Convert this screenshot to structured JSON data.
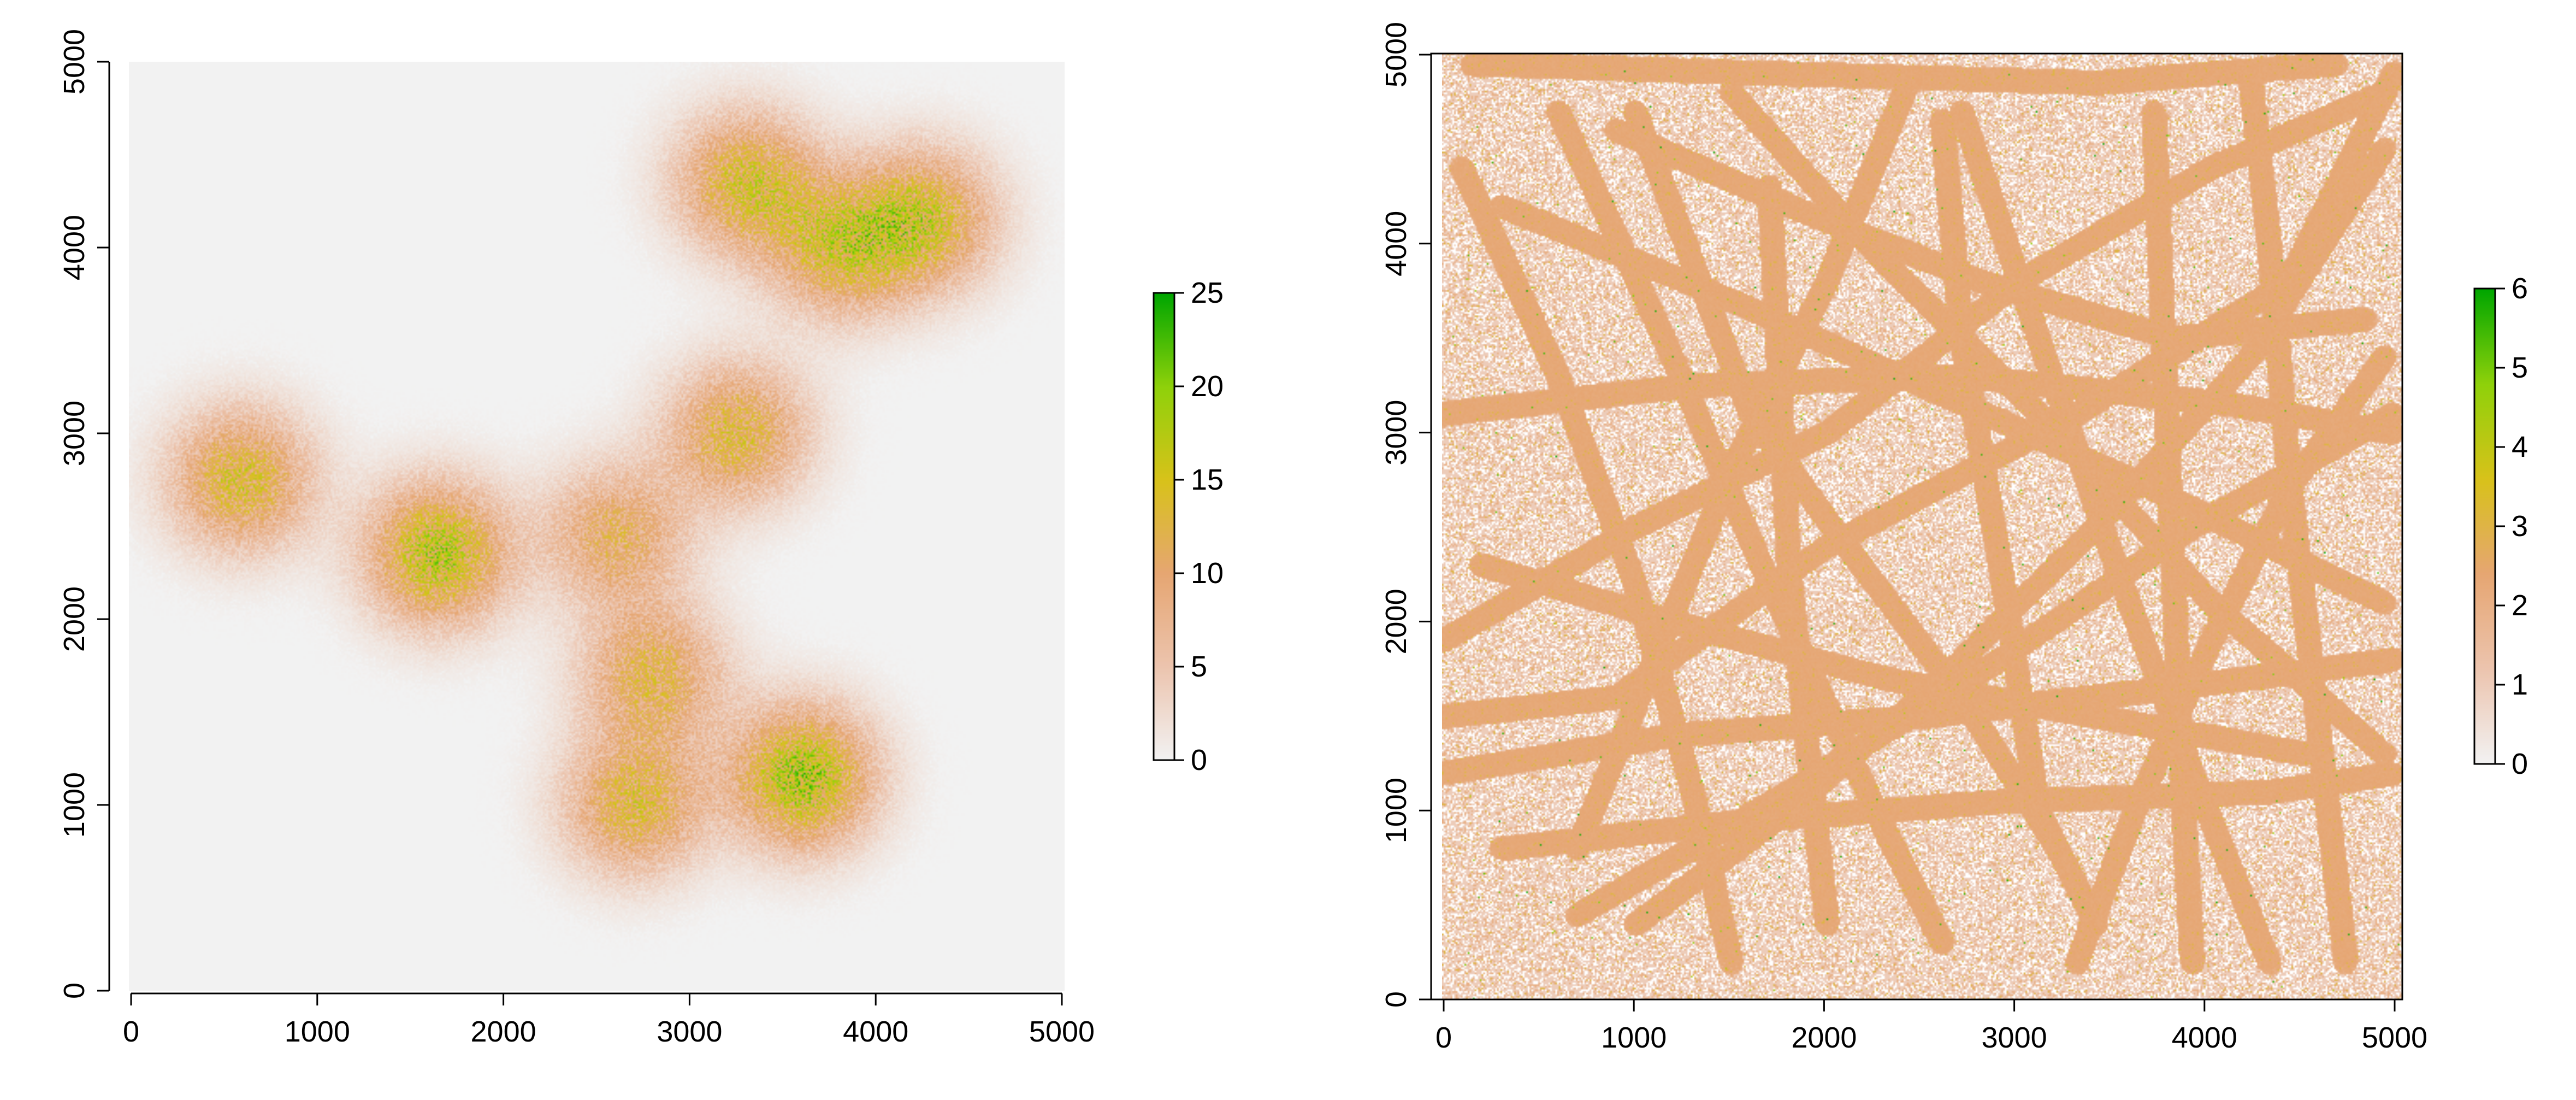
{
  "chart_data": [
    {
      "type": "heatmap",
      "title": "",
      "xlabel": "",
      "ylabel": "",
      "xlim": [
        -100,
        5100
      ],
      "ylim": [
        -100,
        5100
      ],
      "raster_extent": [
        0,
        5000
      ],
      "x_ticks": [
        0,
        1000,
        2000,
        3000,
        4000,
        5000
      ],
      "y_ticks": [
        0,
        1000,
        2000,
        3000,
        4000,
        5000
      ],
      "x_tick_labels": [
        "0",
        "1000",
        "2000",
        "3000",
        "4000",
        "5000"
      ],
      "y_tick_labels": [
        "0",
        "1000",
        "2000",
        "3000",
        "4000",
        "5000"
      ],
      "box": false,
      "background_value": 0,
      "color_scale": {
        "min": 0,
        "max": 25,
        "ticks": [
          0,
          5,
          10,
          15,
          20,
          25
        ],
        "tick_labels": [
          "0",
          "5",
          "10",
          "15",
          "20",
          "25"
        ],
        "colors": [
          "#f2f2f2",
          "#ecc4ae",
          "#e6a672",
          "#d8c21a",
          "#8fd10a",
          "#00a600"
        ]
      },
      "clusters": [
        {
          "x": 600,
          "y": 2750,
          "peak": 13
        },
        {
          "x": 1650,
          "y": 2350,
          "peak": 16
        },
        {
          "x": 2600,
          "y": 2450,
          "peak": 10
        },
        {
          "x": 2800,
          "y": 1700,
          "peak": 11
        },
        {
          "x": 2700,
          "y": 1000,
          "peak": 12
        },
        {
          "x": 3600,
          "y": 1150,
          "peak": 17
        },
        {
          "x": 3250,
          "y": 3000,
          "peak": 12
        },
        {
          "x": 3300,
          "y": 4350,
          "peak": 13
        },
        {
          "x": 3800,
          "y": 4000,
          "peak": 12
        },
        {
          "x": 4250,
          "y": 4150,
          "peak": 13
        }
      ]
    },
    {
      "type": "heatmap",
      "title": "",
      "xlabel": "",
      "ylabel": "",
      "xlim": [
        -100,
        5100
      ],
      "ylim": [
        -100,
        5100
      ],
      "raster_extent": [
        0,
        5000
      ],
      "x_ticks": [
        0,
        1000,
        2000,
        3000,
        4000,
        5000
      ],
      "y_ticks": [
        0,
        1000,
        2000,
        3000,
        4000,
        5000
      ],
      "x_tick_labels": [
        "0",
        "1000",
        "2000",
        "3000",
        "4000",
        "5000"
      ],
      "y_tick_labels": [
        "0",
        "1000",
        "2000",
        "3000",
        "4000",
        "5000"
      ],
      "box": true,
      "background_value": 0.6,
      "color_scale": {
        "min": 0,
        "max": 6,
        "ticks": [
          0,
          1,
          2,
          3,
          4,
          5,
          6
        ],
        "tick_labels": [
          "0",
          "1",
          "2",
          "3",
          "4",
          "5",
          "6"
        ],
        "colors": [
          "#f2f2f2",
          "#ecc4ae",
          "#e6a672",
          "#d8c21a",
          "#8fd10a",
          "#00a600"
        ]
      },
      "tracks": [
        [
          [
            150,
            4950
          ],
          [
            1700,
            4900
          ],
          [
            3400,
            4850
          ],
          [
            4650,
            4950
          ]
        ],
        [
          [
            4950,
            4900
          ],
          [
            4400,
            3800
          ],
          [
            3300,
            3100
          ],
          [
            2000,
            2400
          ],
          [
            900,
            1600
          ],
          [
            0,
            1500
          ]
        ],
        [
          [
            600,
            4700
          ],
          [
            1150,
            3500
          ],
          [
            1700,
            2200
          ],
          [
            2300,
            900
          ],
          [
            2600,
            300
          ]
        ],
        [
          [
            2600,
            4650
          ],
          [
            2700,
            3500
          ],
          [
            2900,
            2300
          ],
          [
            3100,
            1000
          ],
          [
            3400,
            400
          ]
        ],
        [
          [
            0,
            3100
          ],
          [
            1300,
            3250
          ],
          [
            2700,
            3300
          ],
          [
            4100,
            3150
          ],
          [
            4950,
            3000
          ]
        ],
        [
          [
            300,
            800
          ],
          [
            1600,
            950
          ],
          [
            2900,
            1050
          ],
          [
            4300,
            1100
          ],
          [
            4950,
            1200
          ]
        ],
        [
          [
            700,
            450
          ],
          [
            1800,
            1100
          ],
          [
            2900,
            1800
          ],
          [
            3900,
            2500
          ],
          [
            4950,
            3100
          ]
        ],
        [
          [
            4300,
            200
          ],
          [
            3900,
            1200
          ],
          [
            3500,
            2300
          ],
          [
            3100,
            3500
          ],
          [
            2700,
            4700
          ]
        ],
        [
          [
            100,
            4400
          ],
          [
            600,
            3300
          ],
          [
            1000,
            2200
          ],
          [
            1300,
            1100
          ],
          [
            1500,
            200
          ]
        ],
        [
          [
            1500,
            4800
          ],
          [
            2300,
            3900
          ],
          [
            3200,
            3000
          ],
          [
            4000,
            2100
          ],
          [
            4900,
            1300
          ]
        ],
        [
          [
            4900,
            4500
          ],
          [
            4200,
            3400
          ],
          [
            3400,
            2500
          ],
          [
            2600,
            1700
          ],
          [
            1800,
            1000
          ],
          [
            1000,
            400
          ]
        ],
        [
          [
            200,
            2300
          ],
          [
            1200,
            2000
          ],
          [
            2300,
            1700
          ],
          [
            3400,
            1500
          ],
          [
            4500,
            1300
          ]
        ],
        [
          [
            3700,
            4700
          ],
          [
            3750,
            3500
          ],
          [
            3800,
            2300
          ],
          [
            3850,
            1100
          ],
          [
            3900,
            200
          ]
        ],
        [
          [
            900,
            4600
          ],
          [
            1800,
            4200
          ],
          [
            2800,
            3800
          ],
          [
            3800,
            3500
          ],
          [
            4800,
            3600
          ]
        ],
        [
          [
            4700,
            200
          ],
          [
            4550,
            1500
          ],
          [
            4400,
            2800
          ],
          [
            4300,
            4000
          ],
          [
            4200,
            4900
          ]
        ],
        [
          [
            1700,
            4300
          ],
          [
            1750,
            3300
          ],
          [
            1800,
            2300
          ],
          [
            1900,
            1300
          ],
          [
            2000,
            400
          ]
        ],
        [
          [
            0,
            1900
          ],
          [
            1000,
            2500
          ],
          [
            2000,
            3000
          ],
          [
            3000,
            3800
          ],
          [
            4000,
            4400
          ],
          [
            4900,
            4800
          ]
        ],
        [
          [
            300,
            4200
          ],
          [
            1500,
            3700
          ],
          [
            2600,
            3200
          ],
          [
            3700,
            2700
          ],
          [
            4900,
            2100
          ]
        ],
        [
          [
            2400,
            4800
          ],
          [
            2000,
            3800
          ],
          [
            1500,
            2800
          ],
          [
            1100,
            1800
          ],
          [
            700,
            800
          ]
        ],
        [
          [
            3300,
            200
          ],
          [
            3600,
            1000
          ],
          [
            4000,
            1900
          ],
          [
            4400,
            2700
          ],
          [
            4900,
            3400
          ]
        ],
        [
          [
            0,
            1200
          ],
          [
            1200,
            1400
          ],
          [
            2500,
            1500
          ],
          [
            3800,
            1650
          ],
          [
            4950,
            1800
          ]
        ],
        [
          [
            1000,
            4700
          ],
          [
            1300,
            3900
          ],
          [
            1600,
            3100
          ],
          [
            2100,
            2400
          ],
          [
            2700,
            1600
          ],
          [
            3200,
            800
          ]
        ]
      ]
    }
  ]
}
